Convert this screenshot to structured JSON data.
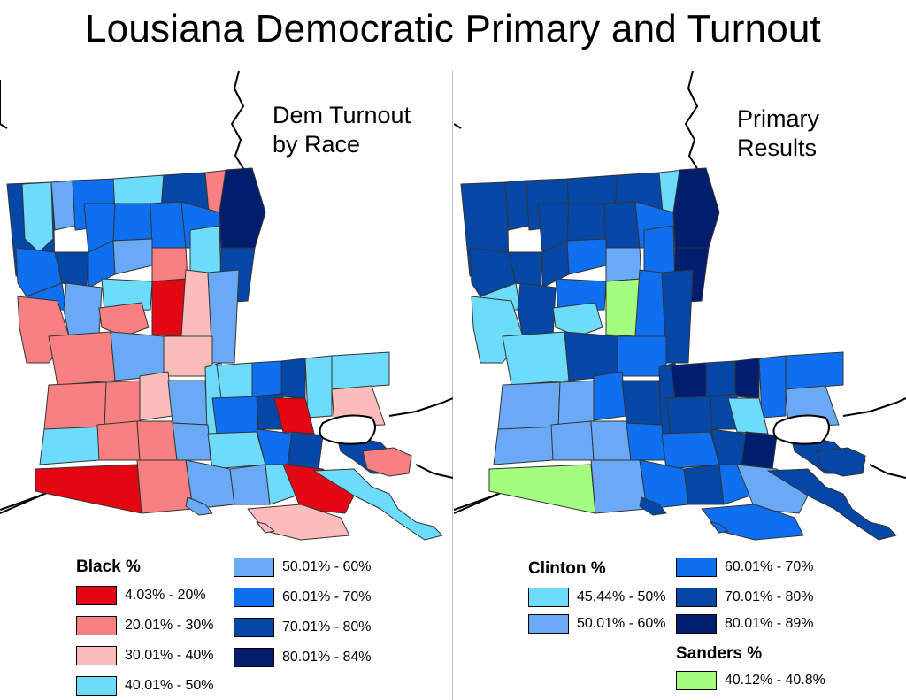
{
  "title": "Lousiana Democratic Primary and Turnout",
  "left_map": {
    "label_line1": "Dem Turnout",
    "label_line2": "by Race",
    "legend_title": "Black %",
    "legend": [
      {
        "label": "4.03% - 20%",
        "color": "#e30613"
      },
      {
        "label": "20.01% - 30%",
        "color": "#f98080"
      },
      {
        "label": "30.01% - 40%",
        "color": "#fcbcbc"
      },
      {
        "label": "40.01% - 50%",
        "color": "#6ddbfb"
      },
      {
        "label": "50.01% - 60%",
        "color": "#6aa9f6"
      },
      {
        "label": "60.01% - 70%",
        "color": "#0f6ff1"
      },
      {
        "label": "70.01% - 80%",
        "color": "#0547a6"
      },
      {
        "label": "80.01% - 84%",
        "color": "#011e6e"
      }
    ]
  },
  "right_map": {
    "label_line1": "Primary",
    "label_line2": "Results",
    "legend_title_clinton": "Clinton %",
    "legend_clinton": [
      {
        "label": "45.44% - 50%",
        "color": "#6ddbfb"
      },
      {
        "label": "50.01% - 60%",
        "color": "#6aa9f6"
      },
      {
        "label": "60.01% - 70%",
        "color": "#0f6ff1"
      },
      {
        "label": "70.01% - 80%",
        "color": "#0547a6"
      },
      {
        "label": "80.01% - 89%",
        "color": "#011e6e"
      }
    ],
    "legend_title_sanders": "Sanders %",
    "legend_sanders": [
      {
        "label": "40.12% - 40.8%",
        "color": "#a4fd7f"
      }
    ]
  }
}
